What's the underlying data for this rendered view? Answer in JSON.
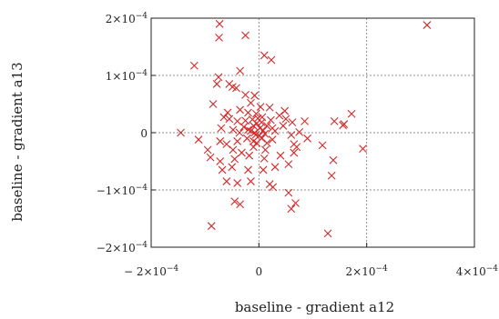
{
  "chart_data": {
    "type": "scatter",
    "xlabel": "baseline - gradient a12",
    "ylabel": "baseline - gradient a13",
    "xlim": [
      -0.0002,
      0.0004
    ],
    "ylim": [
      -0.0002,
      0.0002
    ],
    "grid": true,
    "marker": "x",
    "marker_color": "#d42a2a",
    "x_ticks": [
      {
        "value": -0.0002,
        "mantissa": "− 2×10",
        "exp": "−4"
      },
      {
        "value": 0,
        "mantissa": "0",
        "exp": ""
      },
      {
        "value": 0.0002,
        "mantissa": "2×10",
        "exp": "−4"
      },
      {
        "value": 0.0004,
        "mantissa": "4×10",
        "exp": "−4"
      }
    ],
    "y_ticks": [
      {
        "value": 0.0002,
        "mantissa": "2×10",
        "exp": "−4"
      },
      {
        "value": 0.0001,
        "mantissa": "1×10",
        "exp": "−4"
      },
      {
        "value": 0,
        "mantissa": "0",
        "exp": ""
      },
      {
        "value": -0.0001,
        "mantissa": "−1×10",
        "exp": "−4"
      },
      {
        "value": -0.0002,
        "mantissa": "−2×10",
        "exp": "−4"
      }
    ],
    "points": [
      [
        -7.3e-05,
        0.00019
      ],
      [
        -7.4e-05,
        0.000166
      ],
      [
        -2.5e-05,
        0.00017
      ],
      [
        0.000312,
        0.000188
      ],
      [
        -0.00012,
        0.000117
      ],
      [
        1e-05,
        0.000135
      ],
      [
        2.3e-05,
        0.000127
      ],
      [
        -3.5e-05,
        0.000108
      ],
      [
        -7.5e-05,
        9.7e-05
      ],
      [
        -7.8e-05,
        8.5e-05
      ],
      [
        -5.5e-05,
        8.5e-05
      ],
      [
        -4.9e-05,
        8e-05
      ],
      [
        -4.2e-05,
        7.8e-05
      ],
      [
        -2.5e-05,
        6.6e-05
      ],
      [
        -8e-06,
        6.5e-05
      ],
      [
        -1.5e-05,
        5.2e-05
      ],
      [
        2e-05,
        4.4e-05
      ],
      [
        -3.5e-05,
        4e-05
      ],
      [
        -5e-06,
        3.3e-05
      ],
      [
        -6.5e-05,
        2.7e-05
      ],
      [
        -5.5e-05,
        2.4e-05
      ],
      [
        -4e-05,
        2e-05
      ],
      [
        -2.5e-05,
        2.1e-05
      ],
      [
        -1.2e-05,
        2.3e-05
      ],
      [
        5e-06,
        1.8e-05
      ],
      [
        2.2e-05,
        2.2e-05
      ],
      [
        3.8e-05,
        3e-05
      ],
      [
        5e-05,
        2.4e-05
      ],
      [
        6.2e-05,
        1.8e-05
      ],
      [
        8.5e-05,
        2e-05
      ],
      [
        0.00014,
        2e-05
      ],
      [
        0.000158,
        1.5e-05
      ],
      [
        0.000172,
        3.3e-05
      ],
      [
        0.000156,
        1.3e-05
      ],
      [
        -0.000145,
        0
      ],
      [
        -7e-05,
        8e-06
      ],
      [
        -4.8e-05,
        5e-06
      ],
      [
        -3.6e-05,
        0
      ],
      [
        -2e-05,
        5e-06
      ],
      [
        -8e-06,
        0
      ],
      [
        2e-06,
        8e-06
      ],
      [
        1.1e-05,
        -2e-06
      ],
      [
        3e-05,
        3e-06
      ],
      [
        6e-05,
        -4e-06
      ],
      [
        7.5e-05,
        1e-06
      ],
      [
        -0.000112,
        -1.2e-05
      ],
      [
        -7.2e-05,
        -1.5e-05
      ],
      [
        -6e-05,
        -2e-05
      ],
      [
        -4e-05,
        -1.5e-05
      ],
      [
        -2.2e-05,
        -1e-05
      ],
      [
        -1e-05,
        -1.5e-05
      ],
      [
        5e-06,
        -1e-05
      ],
      [
        1.5e-05,
        -1.8e-05
      ],
      [
        2.5e-05,
        -1.2e-05
      ],
      [
        6.5e-05,
        -2e-05
      ],
      [
        9e-05,
        -1e-05
      ],
      [
        0.000118,
        -2.2e-05
      ],
      [
        0.000193,
        -2.8e-05
      ],
      [
        -9e-05,
        -4.3e-05
      ],
      [
        -7.2e-05,
        -5e-05
      ],
      [
        -4.5e-05,
        -4.6e-05
      ],
      [
        -3.2e-05,
        -3.5e-05
      ],
      [
        -1.8e-05,
        -4e-05
      ],
      [
        1e-05,
        -4.5e-05
      ],
      [
        4e-05,
        -4e-05
      ],
      [
        6.5e-05,
        -3.5e-05
      ],
      [
        0.000138,
        -4.8e-05
      ],
      [
        -5e-05,
        -6e-05
      ],
      [
        -2e-05,
        -6.5e-05
      ],
      [
        8e-06,
        -6.5e-05
      ],
      [
        3e-05,
        -6e-05
      ],
      [
        5.5e-05,
        -5.5e-05
      ],
      [
        0.000135,
        -7.5e-05
      ],
      [
        -6e-05,
        -8.5e-05
      ],
      [
        -4e-05,
        -8.8e-05
      ],
      [
        -1.5e-05,
        -8.5e-05
      ],
      [
        2e-05,
        -9e-05
      ],
      [
        2.6e-05,
        -9.5e-05
      ],
      [
        5.5e-05,
        -0.000105
      ],
      [
        -4.5e-05,
        -0.00012
      ],
      [
        -3.5e-05,
        -0.000125
      ],
      [
        6.8e-05,
        -0.000123
      ],
      [
        6e-05,
        -0.000133
      ],
      [
        -8.8e-05,
        -0.000163
      ],
      [
        0.000128,
        -0.000176
      ],
      [
        -1e-05,
        1.2e-05
      ],
      [
        -4e-06,
        1.6e-05
      ],
      [
        6e-06,
        2.7e-05
      ],
      [
        -1.5e-05,
        3e-06
      ],
      [
        1.5e-05,
        1.2e-05
      ],
      [
        -2.8e-05,
        1e-05
      ],
      [
        1e-06,
        -5e-06
      ],
      [
        8e-06,
        4e-06
      ],
      [
        -6e-06,
        -4e-06
      ],
      [
        -2e-06,
        2.5e-05
      ],
      [
        1.2e-05,
        -3e-05
      ],
      [
        -1e-05,
        -2.5e-05
      ],
      [
        -2e-05,
        3.5e-05
      ],
      [
        2.5e-05,
        8e-06
      ],
      [
        4.5e-05,
        1.2e-05
      ],
      [
        -4.8e-05,
        -3e-05
      ],
      [
        -5.8e-05,
        3.5e-05
      ],
      [
        -8.5e-05,
        5e-05
      ],
      [
        -9.5e-05,
        -3e-05
      ],
      [
        4.8e-05,
        3.8e-05
      ],
      [
        7e-05,
        -2.5e-05
      ],
      [
        -4e-06,
        -1.8e-05
      ],
      [
        3e-06,
        4.5e-05
      ],
      [
        -6.8e-05,
        -6.5e-05
      ]
    ]
  }
}
